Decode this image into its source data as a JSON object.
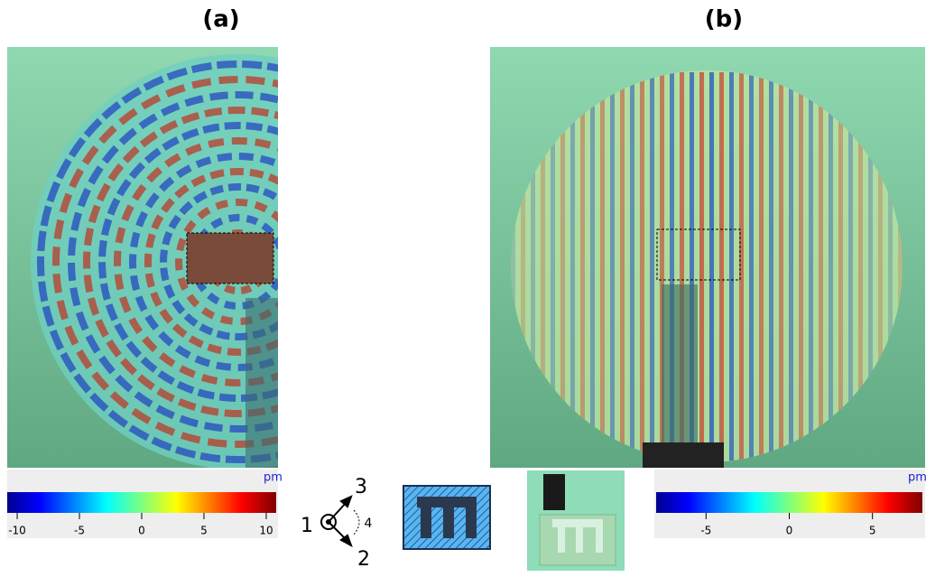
{
  "panels": [
    {
      "label": "(a)",
      "colorbar": {
        "unit": "pm",
        "range": [
          -10.8,
          10.8
        ],
        "ticks": [
          -10,
          -5,
          0,
          5,
          10
        ]
      }
    },
    {
      "label": "(b)",
      "colorbar": {
        "unit": "pm",
        "range": [
          -8,
          8
        ],
        "ticks": [
          -5,
          0,
          5
        ]
      }
    }
  ],
  "axes_symbol": {
    "labels": [
      "1",
      "2",
      "3",
      "4"
    ]
  }
}
